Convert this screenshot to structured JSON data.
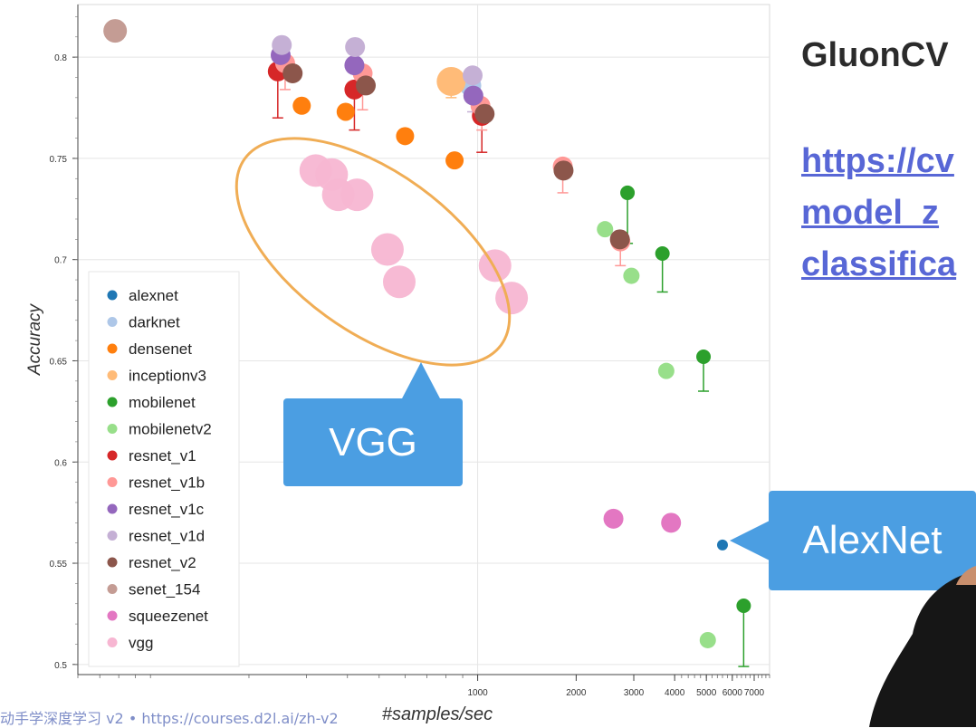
{
  "slide": {
    "title": "GluonCV",
    "link_lines": [
      "https://cv",
      "model_z",
      "classifica"
    ],
    "footer": "动手学深度学习 v2 • https://courses.d2l.ai/zh-v2"
  },
  "callouts": {
    "vgg": "VGG",
    "alexnet": "AlexNet"
  },
  "chart_data": {
    "type": "scatter",
    "xlabel": "#samples/sec",
    "ylabel": "Accuracy",
    "x_scale": "log",
    "xlim": [
      60,
      7800
    ],
    "ylim": [
      0.495,
      0.826
    ],
    "x_ticks": [
      1000,
      2000,
      3000,
      4000,
      5000,
      6000,
      7000
    ],
    "y_ticks": [
      0.5,
      0.55,
      0.6,
      0.65,
      0.7,
      0.75,
      0.8
    ],
    "legend_position": "bottom-left",
    "series": [
      {
        "name": "alexnet",
        "color": "#1f77b4",
        "points": [
          {
            "x": 5600,
            "y": 0.559
          }
        ]
      },
      {
        "name": "darknet",
        "color": "#aec7e8",
        "points": [
          {
            "x": 950,
            "y": 0.786
          }
        ]
      },
      {
        "name": "densenet",
        "color": "#ff7f0e",
        "points": [
          {
            "x": 290,
            "y": 0.776
          },
          {
            "x": 395,
            "y": 0.773
          },
          {
            "x": 600,
            "y": 0.761
          },
          {
            "x": 850,
            "y": 0.749
          }
        ]
      },
      {
        "name": "inceptionv3",
        "color": "#ffbb78",
        "points": [
          {
            "x": 830,
            "y": 0.788
          }
        ]
      },
      {
        "name": "mobilenet",
        "color": "#2ca02c",
        "points": [
          {
            "x": 2870,
            "y": 0.733
          },
          {
            "x": 3670,
            "y": 0.703
          },
          {
            "x": 4900,
            "y": 0.652
          },
          {
            "x": 6500,
            "y": 0.529
          }
        ]
      },
      {
        "name": "mobilenetv2",
        "color": "#98df8a",
        "points": [
          {
            "x": 2450,
            "y": 0.715
          },
          {
            "x": 2950,
            "y": 0.692
          },
          {
            "x": 3770,
            "y": 0.645
          },
          {
            "x": 5050,
            "y": 0.512
          }
        ]
      },
      {
        "name": "resnet_v1",
        "color": "#d62728",
        "points": [
          {
            "x": 245,
            "y": 0.793
          },
          {
            "x": 420,
            "y": 0.784
          },
          {
            "x": 1030,
            "y": 0.771
          }
        ]
      },
      {
        "name": "resnet_v1b",
        "color": "#ff9896",
        "points": [
          {
            "x": 258,
            "y": 0.797
          },
          {
            "x": 445,
            "y": 0.792
          },
          {
            "x": 1020,
            "y": 0.776
          },
          {
            "x": 1820,
            "y": 0.746
          },
          {
            "x": 2730,
            "y": 0.709
          }
        ]
      },
      {
        "name": "resnet_v1c",
        "color": "#9467bd",
        "points": [
          {
            "x": 250,
            "y": 0.801
          },
          {
            "x": 420,
            "y": 0.796
          },
          {
            "x": 970,
            "y": 0.781
          }
        ]
      },
      {
        "name": "resnet_v1d",
        "color": "#c5b0d5",
        "points": [
          {
            "x": 252,
            "y": 0.806
          },
          {
            "x": 422,
            "y": 0.805
          },
          {
            "x": 965,
            "y": 0.791
          }
        ]
      },
      {
        "name": "resnet_v2",
        "color": "#8c564b",
        "points": [
          {
            "x": 272,
            "y": 0.792
          },
          {
            "x": 455,
            "y": 0.786
          },
          {
            "x": 1050,
            "y": 0.772
          },
          {
            "x": 1830,
            "y": 0.744
          },
          {
            "x": 2720,
            "y": 0.71
          }
        ]
      },
      {
        "name": "senet_154",
        "color": "#c49c94",
        "points": [
          {
            "x": 78,
            "y": 0.813
          }
        ]
      },
      {
        "name": "squeezenet",
        "color": "#e377c2",
        "points": [
          {
            "x": 2600,
            "y": 0.572
          },
          {
            "x": 3900,
            "y": 0.57
          }
        ]
      },
      {
        "name": "vgg",
        "color": "#f7b6d2",
        "points": [
          {
            "x": 320,
            "y": 0.744
          },
          {
            "x": 358,
            "y": 0.742
          },
          {
            "x": 375,
            "y": 0.732
          },
          {
            "x": 428,
            "y": 0.732
          },
          {
            "x": 530,
            "y": 0.705
          },
          {
            "x": 576,
            "y": 0.689
          },
          {
            "x": 1130,
            "y": 0.697
          },
          {
            "x": 1270,
            "y": 0.681
          }
        ]
      }
    ]
  }
}
